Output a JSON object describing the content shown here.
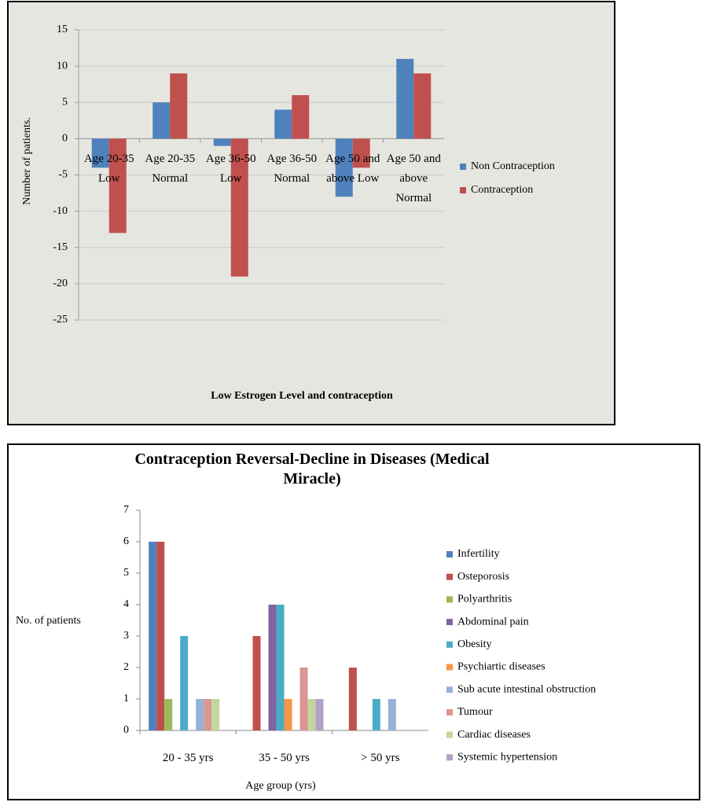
{
  "chart_data": [
    {
      "type": "bar",
      "title": "Low Estrogen Level and contraception",
      "y_label": "Number of patients.",
      "categories": [
        "Age 20-35 Low",
        "Age 20-35 Normal",
        "Age 36-50 Low",
        "Age 36-50 Normal",
        "Age 50 and above Low",
        "Age 50 and above Normal"
      ],
      "series": [
        {
          "name": "Non Contraception",
          "color": "#4f81bd",
          "values": [
            -4,
            5,
            -1,
            4,
            -8,
            11
          ]
        },
        {
          "name": "Contraception",
          "color": "#c0504d",
          "values": [
            -13,
            9,
            -19,
            6,
            -4,
            9
          ]
        }
      ],
      "ylim": [
        -25,
        15
      ],
      "yticks": [
        -25,
        -20,
        -15,
        -10,
        -5,
        0,
        5,
        10,
        15
      ],
      "grid": true,
      "legend": "right"
    },
    {
      "type": "bar",
      "title": "Contraception Reversal-Decline in Diseases (Medical Miracle)",
      "y_label": "No. of patients",
      "x_label": "Age group (yrs)",
      "categories": [
        "20 - 35 yrs",
        "35 - 50 yrs",
        "> 50 yrs"
      ],
      "series": [
        {
          "name": "Infertility",
          "color": "#4f81bd",
          "values": [
            6,
            0,
            0
          ]
        },
        {
          "name": "Osteporosis",
          "color": "#c0504d",
          "values": [
            6,
            3,
            2
          ]
        },
        {
          "name": "Polyarthritis",
          "color": "#9bbb59",
          "values": [
            1,
            0,
            0
          ]
        },
        {
          "name": "Abdominal pain",
          "color": "#8064a2",
          "values": [
            0,
            4,
            0
          ]
        },
        {
          "name": "Obesity",
          "color": "#4bacc6",
          "values": [
            3,
            4,
            1
          ]
        },
        {
          "name": "Psychiartic diseases",
          "color": "#f79646",
          "values": [
            0,
            1,
            0
          ]
        },
        {
          "name": "Sub acute intestinal obstruction",
          "color": "#95b3d7",
          "values": [
            1,
            0,
            1
          ]
        },
        {
          "name": "Tumour",
          "color": "#d99694",
          "values": [
            1,
            2,
            0
          ]
        },
        {
          "name": "Cardiac diseases",
          "color": "#c3d69b",
          "values": [
            1,
            1,
            0
          ]
        },
        {
          "name": "Systemic hypertension",
          "color": "#b3a2c7",
          "values": [
            0,
            1,
            0
          ]
        }
      ],
      "ylim": [
        0,
        7
      ],
      "yticks": [
        0,
        1,
        2,
        3,
        4,
        5,
        6,
        7
      ],
      "grid": false,
      "legend": "right"
    }
  ]
}
